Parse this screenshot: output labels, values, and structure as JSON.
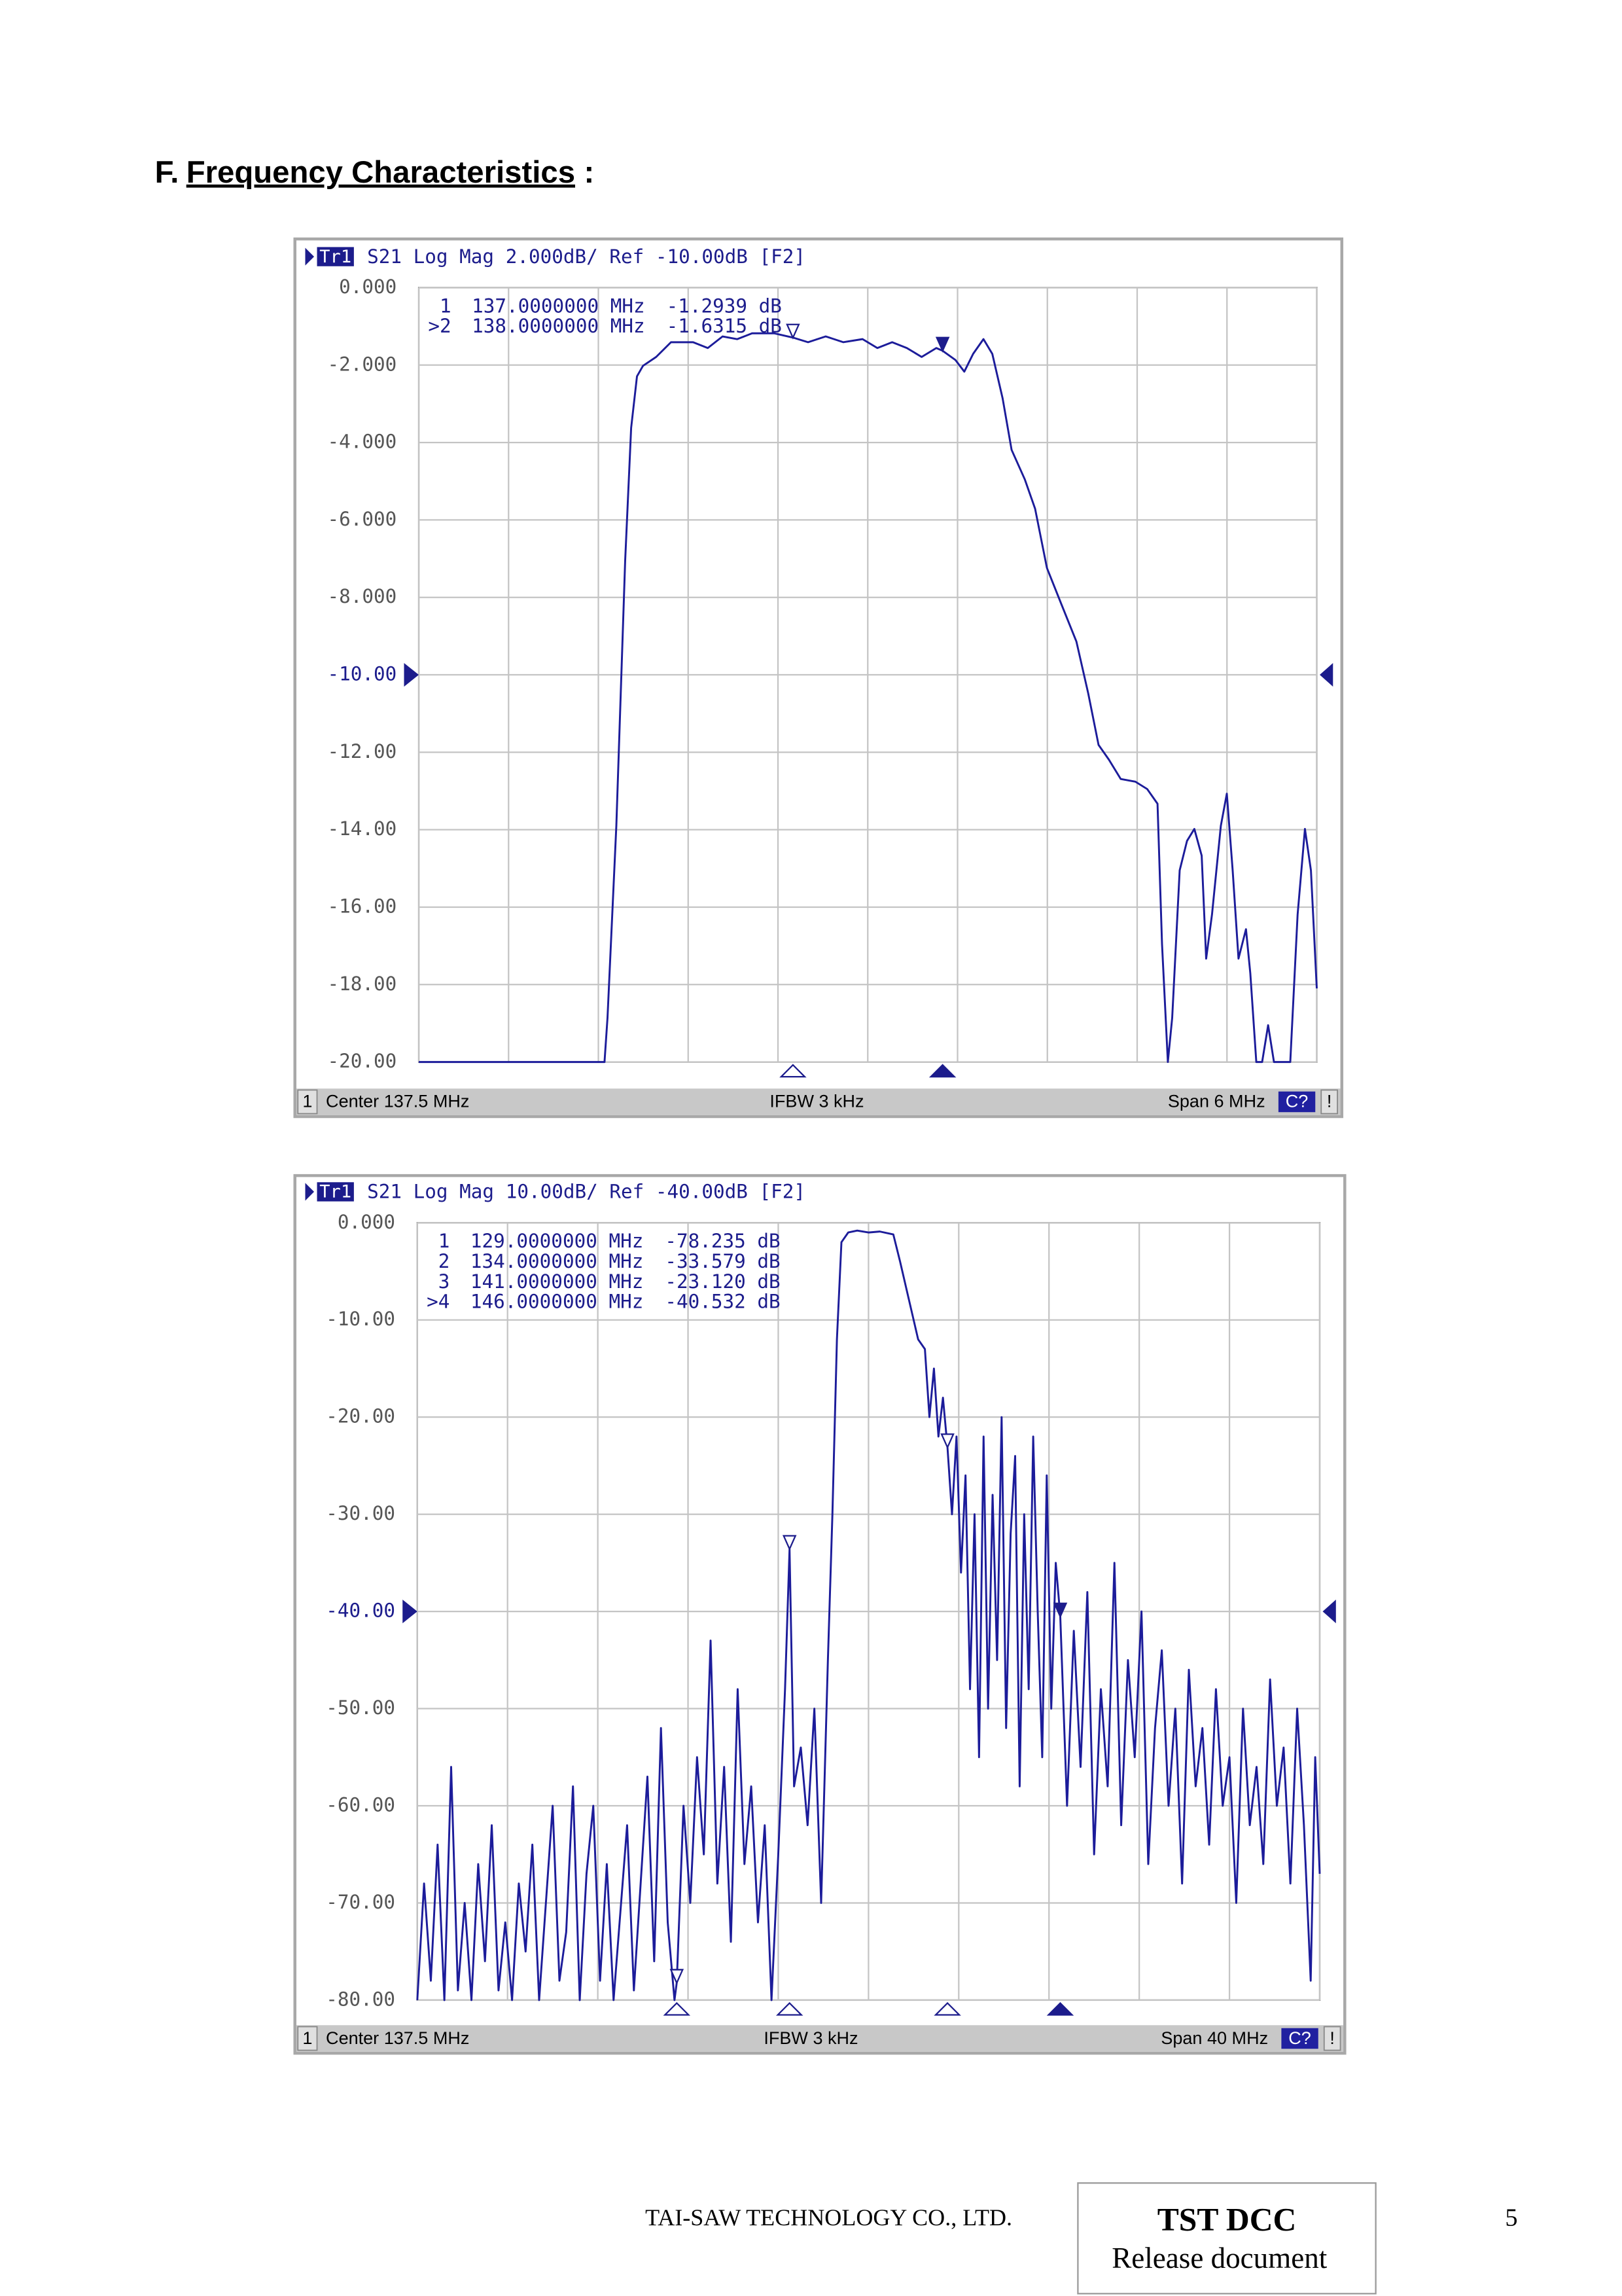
{
  "heading": {
    "prefix": "F.",
    "title": "Frequency Characteristics",
    "suffix": ":"
  },
  "chart_data": [
    {
      "type": "line",
      "header": {
        "trace": "Tr1",
        "text": "S21 Log Mag 2.000dB/ Ref -10.00dB [F2]"
      },
      "color": "#1c1c9a",
      "grid": true,
      "ref": -10,
      "xlim": [
        134.5,
        140.5
      ],
      "xticks": [
        134.5,
        135.1,
        135.7,
        136.3,
        136.9,
        137.5,
        138.1,
        138.7,
        139.3,
        139.9,
        140.5
      ],
      "ylim": [
        -20,
        0
      ],
      "yticks": [
        {
          "value": 0,
          "label": "0.000"
        },
        {
          "value": -2,
          "label": "-2.000"
        },
        {
          "value": -4,
          "label": "-4.000"
        },
        {
          "value": -6,
          "label": "-6.000"
        },
        {
          "value": -8,
          "label": "-8.000"
        },
        {
          "value": -10,
          "label": "-10.00"
        },
        {
          "value": -12,
          "label": "-12.00"
        },
        {
          "value": -14,
          "label": "-14.00"
        },
        {
          "value": -16,
          "label": "-16.00"
        },
        {
          "value": -18,
          "label": "-18.00"
        },
        {
          "value": -20,
          "label": "-20.00"
        }
      ],
      "x": [
        134.5,
        135.741,
        135.761,
        135.82,
        135.879,
        135.919,
        135.958,
        135.998,
        136.086,
        136.185,
        136.333,
        136.431,
        136.53,
        136.628,
        136.727,
        136.874,
        137,
        137.101,
        137.219,
        137.337,
        137.465,
        137.564,
        137.663,
        137.761,
        137.86,
        137.958,
        138,
        138.086,
        138.145,
        138.204,
        138.273,
        138.332,
        138.401,
        138.461,
        138.549,
        138.618,
        138.697,
        138.795,
        138.894,
        138.973,
        139.042,
        139.111,
        139.19,
        139.288,
        139.367,
        139.436,
        139.466,
        139.505,
        139.534,
        139.584,
        139.633,
        139.682,
        139.731,
        139.761,
        139.8,
        139.859,
        139.899,
        139.938,
        139.977,
        140.027,
        140.056,
        140.096,
        140.135,
        140.175,
        140.214,
        140.323,
        140.372,
        140.421,
        140.461,
        140.5
      ],
      "values": [
        -20,
        -20,
        -18.86,
        -13.9,
        -7.05,
        -3.62,
        -2.29,
        -2.02,
        -1.79,
        -1.41,
        -1.41,
        -1.56,
        -1.26,
        -1.33,
        -1.18,
        -1.18,
        -1.29,
        -1.41,
        -1.26,
        -1.41,
        -1.33,
        -1.56,
        -1.41,
        -1.56,
        -1.79,
        -1.56,
        -1.63,
        -1.87,
        -2.17,
        -1.71,
        -1.33,
        -1.71,
        -2.86,
        -4.19,
        -4.95,
        -5.71,
        -7.24,
        -8.19,
        -9.14,
        -10.48,
        -11.81,
        -12.19,
        -12.69,
        -12.76,
        -12.95,
        -13.33,
        -16.95,
        -20,
        -18.86,
        -15.05,
        -14.29,
        -13.98,
        -14.67,
        -17.33,
        -16.19,
        -13.9,
        -13.07,
        -15.05,
        -17.33,
        -16.57,
        -17.71,
        -20,
        -20,
        -19.05,
        -20,
        -20,
        -16.19,
        -13.98,
        -15.05,
        -18.1
      ],
      "markers": [
        {
          "id": "1",
          "x": 137,
          "x_label": "137.0000000 MHz",
          "value": -1.2939,
          "value_label": "-1.2939 dB",
          "active": false
        },
        {
          "id": ">2",
          "x": 138,
          "x_label": "138.0000000 MHz",
          "value": -1.6315,
          "value_label": "-1.6315 dB",
          "active": true
        }
      ],
      "footer": {
        "channel": "1",
        "center": "Center 137.5 MHz",
        "ifbw": "IFBW 3 kHz",
        "span": "Span 6 MHz",
        "status": "C?",
        "flag": "!"
      }
    },
    {
      "type": "line",
      "header": {
        "trace": "Tr1",
        "text": "S21 Log Mag 10.00dB/ Ref -40.00dB [F2]"
      },
      "color": "#1c1c9a",
      "grid": true,
      "ref": -40,
      "xlim": [
        117.5,
        157.5
      ],
      "xticks": [
        117.5,
        121.5,
        125.5,
        129.5,
        133.5,
        137.5,
        141.5,
        145.5,
        149.5,
        153.5,
        157.5
      ],
      "ylim": [
        -80,
        0
      ],
      "yticks": [
        {
          "value": 0,
          "label": "0.000"
        },
        {
          "value": -10,
          "label": "-10.00"
        },
        {
          "value": -20,
          "label": "-20.00"
        },
        {
          "value": -30,
          "label": "-30.00"
        },
        {
          "value": -40,
          "label": "-40.00"
        },
        {
          "value": -50,
          "label": "-50.00"
        },
        {
          "value": -60,
          "label": "-60.00"
        },
        {
          "value": -70,
          "label": "-70.00"
        },
        {
          "value": -80,
          "label": "-80.00"
        }
      ],
      "x": [
        117.5,
        117.8,
        118.1,
        118.4,
        118.7,
        119.0,
        119.3,
        119.6,
        119.9,
        120.2,
        120.5,
        120.8,
        121.1,
        121.4,
        121.7,
        122.0,
        122.3,
        122.6,
        122.9,
        123.2,
        123.5,
        123.8,
        124.1,
        124.4,
        124.7,
        125.0,
        125.3,
        125.6,
        125.9,
        126.2,
        126.5,
        126.8,
        127.1,
        127.4,
        127.7,
        128.0,
        128.3,
        128.6,
        128.9,
        129.0,
        129.3,
        129.6,
        129.9,
        130.2,
        130.5,
        130.8,
        131.1,
        131.4,
        131.7,
        132.0,
        132.3,
        132.6,
        132.9,
        133.2,
        133.5,
        133.8,
        134.0,
        134.2,
        134.5,
        134.8,
        135.1,
        135.4,
        135.7,
        135.9,
        136.1,
        136.3,
        136.6,
        137.0,
        137.5,
        138.0,
        138.6,
        138.9,
        139.3,
        139.7,
        140.0,
        140.2,
        140.4,
        140.6,
        140.8,
        141.0,
        141.2,
        141.4,
        141.6,
        141.8,
        142.0,
        142.2,
        142.4,
        142.6,
        142.8,
        143.0,
        143.2,
        143.4,
        143.6,
        143.8,
        144.0,
        144.2,
        144.4,
        144.6,
        144.8,
        145.0,
        145.2,
        145.4,
        145.6,
        145.8,
        146.0,
        146.3,
        146.6,
        146.9,
        147.2,
        147.5,
        147.8,
        148.1,
        148.4,
        148.7,
        149.0,
        149.3,
        149.6,
        149.9,
        150.2,
        150.5,
        150.8,
        151.1,
        151.4,
        151.7,
        152.0,
        152.3,
        152.6,
        152.9,
        153.2,
        153.5,
        153.8,
        154.1,
        154.4,
        154.7,
        155.0,
        155.3,
        155.6,
        155.9,
        156.2,
        156.5,
        156.8,
        157.1,
        157.3,
        157.5
      ],
      "values": [
        -80,
        -68,
        -78,
        -64,
        -80,
        -56,
        -79,
        -70,
        -80,
        -66,
        -76,
        -62,
        -79,
        -72,
        -80,
        -68,
        -75,
        -64,
        -80,
        -70,
        -60,
        -78,
        -73,
        -58,
        -80,
        -67,
        -60,
        -78,
        -66,
        -80,
        -71,
        -62,
        -79,
        -68,
        -57,
        -76,
        -52,
        -72,
        -80,
        -78.2,
        -60,
        -70,
        -55,
        -65,
        -43,
        -68,
        -56,
        -74,
        -48,
        -66,
        -58,
        -72,
        -62,
        -80,
        -65,
        -48,
        -33.6,
        -58,
        -54,
        -62,
        -50,
        -70,
        -45,
        -30,
        -12,
        -2,
        -1,
        -0.8,
        -1,
        -0.9,
        -1.2,
        -4,
        -8,
        -12,
        -13,
        -20,
        -15,
        -22,
        -18,
        -23.1,
        -30,
        -22,
        -36,
        -26,
        -48,
        -30,
        -55,
        -22,
        -50,
        -28,
        -45,
        -20,
        -52,
        -32,
        -24,
        -58,
        -30,
        -48,
        -22,
        -40,
        -55,
        -26,
        -50,
        -35,
        -40.5,
        -60,
        -42,
        -56,
        -38,
        -65,
        -48,
        -58,
        -35,
        -62,
        -45,
        -55,
        -40,
        -66,
        -52,
        -44,
        -60,
        -50,
        -68,
        -46,
        -58,
        -52,
        -64,
        -48,
        -60,
        -55,
        -70,
        -50,
        -62,
        -56,
        -66,
        -47,
        -60,
        -54,
        -68,
        -50,
        -62,
        -78,
        -55,
        -67
      ],
      "markers": [
        {
          "id": "1",
          "x": 129,
          "x_label": "129.0000000 MHz",
          "value": -78.235,
          "value_label": "-78.235 dB",
          "active": false
        },
        {
          "id": "2",
          "x": 134,
          "x_label": "134.0000000 MHz",
          "value": -33.579,
          "value_label": "-33.579 dB",
          "active": false
        },
        {
          "id": "3",
          "x": 141,
          "x_label": "141.0000000 MHz",
          "value": -23.12,
          "value_label": "-23.120 dB",
          "active": false
        },
        {
          "id": ">4",
          "x": 146,
          "x_label": "146.0000000 MHz",
          "value": -40.532,
          "value_label": "-40.532 dB",
          "active": true
        }
      ],
      "footer": {
        "channel": "1",
        "center": "Center 137.5 MHz",
        "ifbw": "IFBW 3 kHz",
        "span": "Span 40 MHz",
        "status": "C?",
        "flag": "!"
      }
    }
  ],
  "footer": {
    "company": "TAI-SAW TECHNOLOGY CO., LTD.",
    "stamp_title": "TST DCC",
    "stamp_text": "Release document",
    "page": "5"
  }
}
